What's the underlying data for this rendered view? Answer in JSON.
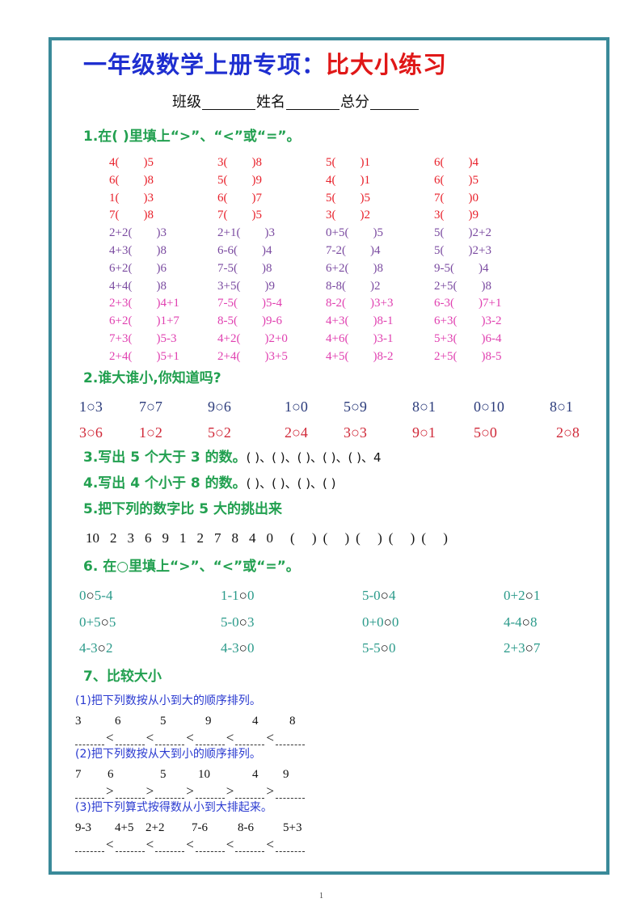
{
  "title": {
    "part1": "一年级数学上册专项：",
    "part2": "比大小练习",
    "color1": "#1f2fd0",
    "color2": "#e01818"
  },
  "info": {
    "class_label": "班级",
    "name_label": "姓名",
    "score_label": "总分"
  },
  "section1": {
    "heading": "1.在(  )里填上“>”、“<”或“=”。",
    "rows": [
      {
        "color": "red",
        "items": [
          [
            "4",
            "5"
          ],
          [
            "3",
            "8"
          ],
          [
            "5",
            "1"
          ],
          [
            "6",
            "4"
          ]
        ]
      },
      {
        "color": "red",
        "items": [
          [
            "6",
            "8"
          ],
          [
            "5",
            "9"
          ],
          [
            "4",
            "1"
          ],
          [
            "6",
            "5"
          ]
        ]
      },
      {
        "color": "red",
        "items": [
          [
            "1",
            "3"
          ],
          [
            "6",
            "7"
          ],
          [
            "5",
            "5"
          ],
          [
            "7",
            "0"
          ]
        ]
      },
      {
        "color": "red",
        "items": [
          [
            "7",
            "8"
          ],
          [
            "7",
            "5"
          ],
          [
            "3",
            "2"
          ],
          [
            "3",
            "9"
          ]
        ]
      },
      {
        "color": "purple",
        "items": [
          [
            "2+2",
            "3"
          ],
          [
            "2+1",
            "3"
          ],
          [
            "0+5",
            "5"
          ],
          [
            "5",
            "2+2"
          ]
        ]
      },
      {
        "color": "purple",
        "items": [
          [
            "4+3",
            "8"
          ],
          [
            "6-6",
            "4"
          ],
          [
            "7-2",
            "4"
          ],
          [
            "5",
            "2+3"
          ]
        ]
      },
      {
        "color": "purple",
        "items": [
          [
            "6+2",
            "6"
          ],
          [
            "7-5",
            "8"
          ],
          [
            "6+2",
            "8"
          ],
          [
            "9-5",
            "4"
          ]
        ]
      },
      {
        "color": "purple",
        "items": [
          [
            "4+4",
            "8"
          ],
          [
            "3+5",
            "9"
          ],
          [
            "8-8",
            "2"
          ],
          [
            "2+5",
            "8"
          ]
        ]
      },
      {
        "color": "pink",
        "items": [
          [
            "2+3",
            "4+1"
          ],
          [
            "7-5",
            "5-4"
          ],
          [
            "8-2",
            "3+3"
          ],
          [
            "6-3",
            "7+1"
          ]
        ]
      },
      {
        "color": "pink",
        "items": [
          [
            "6+2",
            "1+7"
          ],
          [
            "8-5",
            "9-6"
          ],
          [
            "4+3",
            "8-1"
          ],
          [
            "6+3",
            "3-2"
          ]
        ]
      },
      {
        "color": "pink",
        "items": [
          [
            "7+3",
            "5-3"
          ],
          [
            "4+2",
            "2+0"
          ],
          [
            "4+6",
            "3-1"
          ],
          [
            "5+3",
            "6-4"
          ]
        ]
      },
      {
        "color": "pink",
        "items": [
          [
            "2+4",
            "5+1"
          ],
          [
            "2+4",
            "3+5"
          ],
          [
            "4+5",
            "8-2"
          ],
          [
            "2+5",
            "8-5"
          ]
        ]
      }
    ]
  },
  "section2": {
    "heading": "2.谁大谁小,你知道吗?",
    "row1": [
      [
        "1",
        "3"
      ],
      [
        "7",
        "7"
      ],
      [
        "9",
        "6"
      ],
      [
        "1",
        "0"
      ],
      [
        "5",
        "9"
      ],
      [
        "8",
        "1"
      ],
      [
        "0",
        "10"
      ],
      [
        "8",
        "1"
      ]
    ],
    "row2": [
      [
        "3",
        "6"
      ],
      [
        "1",
        "2"
      ],
      [
        "5",
        "2"
      ],
      [
        "2",
        "4"
      ],
      [
        "3",
        "3"
      ],
      [
        "9",
        "1"
      ],
      [
        "5",
        "0"
      ],
      [
        "2",
        "8"
      ]
    ]
  },
  "section3": {
    "heading": "3.写出 5 个大于 3 的数。",
    "answers": "(     )、(     )、(     )、(     )、(     )、4"
  },
  "section4": {
    "heading": "4.写出 4 个小于 8 的数。",
    "answers": "(     )、(     )、(     )、(     )"
  },
  "section5": {
    "heading": "5.把下列的数字比 5 大的挑出来",
    "numbers": [
      "10",
      "2",
      "3",
      "6",
      "9",
      "1",
      "2",
      "7",
      "8",
      "4",
      "0"
    ],
    "answers": [
      "(     )",
      "(     )",
      "(     )",
      "(     )",
      "(     )"
    ]
  },
  "section6": {
    "heading": "6. 在○里填上“>”、“<”或“=”。",
    "rows": [
      [
        [
          "0",
          "5-4"
        ],
        [
          "1-1",
          "0"
        ],
        [
          "5-0",
          "4"
        ],
        [
          "0+2",
          "1"
        ]
      ],
      [
        [
          "0+5",
          "5"
        ],
        [
          "5-0",
          "3"
        ],
        [
          "0+0",
          "0"
        ],
        [
          "4-4",
          "8"
        ]
      ],
      [
        [
          "4-3",
          "2"
        ],
        [
          "4-3",
          "0"
        ],
        [
          "5-5",
          "0"
        ],
        [
          "2+3",
          "7"
        ]
      ]
    ]
  },
  "section7": {
    "heading": "7、比较大小",
    "parts": [
      {
        "label": "(1)把下列数按从小到大的顺序排列。",
        "items": [
          "3",
          "6",
          "5",
          "9",
          "4",
          "8"
        ],
        "sign": "<"
      },
      {
        "label": "(2)把下列数按从大到小的顺序排列。",
        "items": [
          "7",
          "6",
          "5",
          "10",
          "4",
          "9"
        ],
        "sign": ">"
      },
      {
        "label": "(3)把下列算式按得数从小到大排起来。",
        "items": [
          "9-3",
          "4+5",
          "2+2",
          "7-6",
          "8-6",
          "5+3"
        ],
        "sign": "<"
      }
    ]
  },
  "circle": "○",
  "page_number": "1",
  "colors": {
    "frame": "#3a8a99",
    "heading": "#22a050",
    "red": "#e8202a",
    "purple": "#7a4aa0",
    "pink": "#e040b0",
    "navy": "#2a3a7a",
    "teal": "#2a9a8a",
    "subheading": "#2a3ad0"
  }
}
